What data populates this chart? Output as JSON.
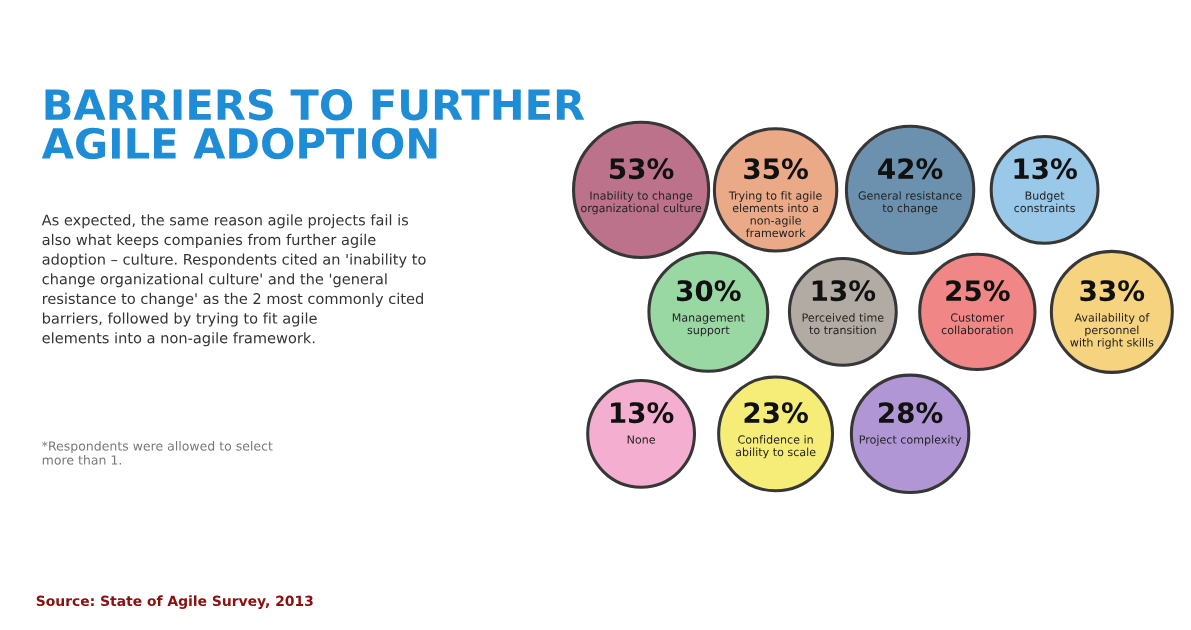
{
  "chart_data": {
    "type": "other",
    "title": "BARRIERS TO FURTHER\nAGILE ADOPTION",
    "subtitle": "As expected, the same reason agile projects fail is\nalso what keeps companies from further agile\nadoption – culture. Respondents cited an 'inability to\nchange organizational culture' and the 'general\nresistance to change' as the 2 most commonly cited\nbarriers, followed by trying to fit agile\nelements into a non-agile framework.",
    "categories": [
      "Inability to change\norganizational culture",
      "Trying to fit agile\nelements into a\nnon-agile\nframework",
      "General resistance\nto change",
      "Budget\nconstraints",
      "Management\nsupport",
      "Perceived time\nto transition",
      "Customer\ncollaboration",
      "Availability of\npersonnel\nwith right skills",
      "None",
      "Confidence in\nability to scale",
      "Project complexity"
    ],
    "values": [
      53,
      35,
      42,
      13,
      30,
      13,
      25,
      33,
      13,
      23,
      28
    ],
    "colors": [
      "#b5637e",
      "#e8a07a",
      "#5b86a6",
      "#8ec3e6",
      "#8ed39a",
      "#a9a39b",
      "#f07a7a",
      "#f5cf70",
      "#f2a6cc",
      "#f5ec6a",
      "#a88bd0"
    ],
    "value_labels": [
      "53%",
      "35%",
      "42%",
      "13%",
      "30%",
      "13%",
      "25%",
      "33%",
      "13%",
      "23%",
      "28%"
    ],
    "annotations": [
      "*Respondents were allowed to select\nmore than 1.",
      "Source: State of Agile Survey, 2013"
    ]
  }
}
